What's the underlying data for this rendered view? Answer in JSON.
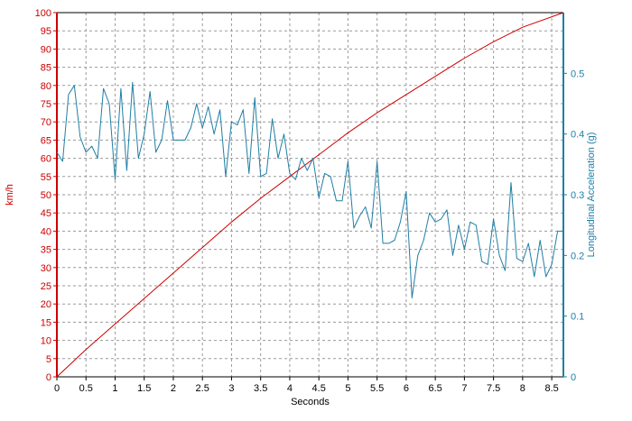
{
  "chart_data": {
    "type": "line",
    "xlabel": "Seconds",
    "ylabel_left": "km/h",
    "ylabel_right": "Longitudinal Acceleration (g)",
    "xlim": [
      0,
      8.7
    ],
    "ylim_left": [
      0,
      100
    ],
    "ylim_right": [
      0,
      0.6
    ],
    "grid": true,
    "x_ticks": [
      "0",
      "0.5",
      "1",
      "1.5",
      "2",
      "2.5",
      "3",
      "3.5",
      "4",
      "4.5",
      "5",
      "5.5",
      "6",
      "6.5",
      "7",
      "7.5",
      "8",
      "8.5"
    ],
    "y_left_ticks": [
      "0",
      "5",
      "10",
      "15",
      "20",
      "25",
      "30",
      "35",
      "40",
      "45",
      "50",
      "55",
      "60",
      "65",
      "70",
      "75",
      "80",
      "85",
      "90",
      "95",
      "100"
    ],
    "y_right_ticks": [
      "0",
      "0.1",
      "0.2",
      "0.3",
      "0.4",
      "0.5"
    ],
    "colors": {
      "speed": "#cc0000",
      "acceleration": "#1f7fa5",
      "grid": "#9a9a9a",
      "left_axis": "#cc0000",
      "right_axis": "#1f7fa5"
    },
    "series": [
      {
        "axis": "left",
        "x": [
          0,
          0.5,
          1,
          1.5,
          2,
          2.5,
          3,
          3.5,
          4,
          4.5,
          5,
          5.5,
          6,
          6.5,
          7,
          7.5,
          8,
          8.7
        ],
        "values": [
          0,
          7.5,
          14.5,
          21.5,
          28.5,
          35.5,
          42.5,
          49,
          55,
          61,
          67,
          72.5,
          77.5,
          82.5,
          87.5,
          92,
          96,
          100
        ]
      },
      {
        "axis": "right",
        "x": [
          0,
          0.1,
          0.2,
          0.3,
          0.4,
          0.5,
          0.6,
          0.7,
          0.8,
          0.9,
          1.0,
          1.1,
          1.2,
          1.3,
          1.4,
          1.5,
          1.6,
          1.7,
          1.8,
          1.9,
          2.0,
          2.1,
          2.2,
          2.3,
          2.4,
          2.5,
          2.6,
          2.7,
          2.8,
          2.9,
          3.0,
          3.1,
          3.2,
          3.3,
          3.4,
          3.5,
          3.6,
          3.7,
          3.8,
          3.9,
          4.0,
          4.1,
          4.2,
          4.3,
          4.4,
          4.5,
          4.6,
          4.7,
          4.8,
          4.9,
          5.0,
          5.1,
          5.2,
          5.3,
          5.4,
          5.5,
          5.6,
          5.7,
          5.8,
          5.9,
          6.0,
          6.1,
          6.2,
          6.3,
          6.4,
          6.5,
          6.6,
          6.7,
          6.8,
          6.9,
          7.0,
          7.1,
          7.2,
          7.3,
          7.4,
          7.5,
          7.6,
          7.7,
          7.8,
          7.9,
          8.0,
          8.1,
          8.2,
          8.3,
          8.4,
          8.5,
          8.6,
          8.7
        ],
        "values": [
          0.37,
          0.355,
          0.465,
          0.48,
          0.395,
          0.37,
          0.38,
          0.36,
          0.475,
          0.45,
          0.325,
          0.475,
          0.34,
          0.485,
          0.36,
          0.4,
          0.47,
          0.37,
          0.39,
          0.455,
          0.39,
          0.39,
          0.39,
          0.41,
          0.45,
          0.41,
          0.445,
          0.4,
          0.44,
          0.33,
          0.42,
          0.415,
          0.44,
          0.335,
          0.46,
          0.33,
          0.335,
          0.425,
          0.36,
          0.4,
          0.335,
          0.325,
          0.36,
          0.34,
          0.36,
          0.295,
          0.335,
          0.33,
          0.29,
          0.29,
          0.355,
          0.245,
          0.265,
          0.28,
          0.245,
          0.355,
          0.22,
          0.22,
          0.225,
          0.255,
          0.305,
          0.13,
          0.2,
          0.225,
          0.27,
          0.255,
          0.26,
          0.275,
          0.2,
          0.25,
          0.21,
          0.255,
          0.25,
          0.19,
          0.185,
          0.26,
          0.2,
          0.175,
          0.32,
          0.195,
          0.19,
          0.22,
          0.165,
          0.225,
          0.165,
          0.185,
          0.24,
          0.24
        ]
      }
    ]
  }
}
